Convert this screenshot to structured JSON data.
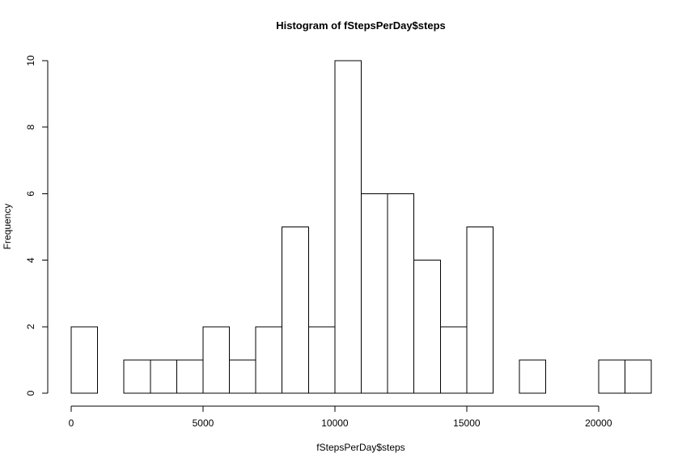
{
  "chart_data": {
    "type": "bar",
    "title": "Histogram of fStepsPerDay$steps",
    "xlabel": "fStepsPerDay$steps",
    "ylabel": "Frequency",
    "bin_width": 1000,
    "bins": [
      {
        "start": 0,
        "end": 1000,
        "count": 2
      },
      {
        "start": 1000,
        "end": 2000,
        "count": 0
      },
      {
        "start": 2000,
        "end": 3000,
        "count": 1
      },
      {
        "start": 3000,
        "end": 4000,
        "count": 1
      },
      {
        "start": 4000,
        "end": 5000,
        "count": 1
      },
      {
        "start": 5000,
        "end": 6000,
        "count": 2
      },
      {
        "start": 6000,
        "end": 7000,
        "count": 1
      },
      {
        "start": 7000,
        "end": 8000,
        "count": 2
      },
      {
        "start": 8000,
        "end": 9000,
        "count": 5
      },
      {
        "start": 9000,
        "end": 10000,
        "count": 2
      },
      {
        "start": 10000,
        "end": 11000,
        "count": 10
      },
      {
        "start": 11000,
        "end": 12000,
        "count": 6
      },
      {
        "start": 12000,
        "end": 13000,
        "count": 6
      },
      {
        "start": 13000,
        "end": 14000,
        "count": 4
      },
      {
        "start": 14000,
        "end": 15000,
        "count": 2
      },
      {
        "start": 15000,
        "end": 16000,
        "count": 5
      },
      {
        "start": 16000,
        "end": 17000,
        "count": 0
      },
      {
        "start": 17000,
        "end": 18000,
        "count": 1
      },
      {
        "start": 18000,
        "end": 19000,
        "count": 0
      },
      {
        "start": 19000,
        "end": 20000,
        "count": 0
      },
      {
        "start": 20000,
        "end": 21000,
        "count": 1
      },
      {
        "start": 21000,
        "end": 22000,
        "count": 1
      }
    ],
    "xlim": [
      0,
      22000
    ],
    "ylim": [
      0,
      10
    ],
    "x_ticks": [
      0,
      5000,
      10000,
      15000,
      20000
    ],
    "x_tick_labels": [
      "0",
      "5000",
      "10000",
      "15000",
      "20000"
    ],
    "y_ticks": [
      0,
      2,
      4,
      6,
      8,
      10
    ],
    "y_tick_labels": [
      "0",
      "2",
      "4",
      "6",
      "8",
      "10"
    ],
    "grid": false,
    "legend": "none",
    "colors": {
      "bar_fill": "#ffffff",
      "bar_stroke": "#000000",
      "axis": "#000000"
    }
  }
}
